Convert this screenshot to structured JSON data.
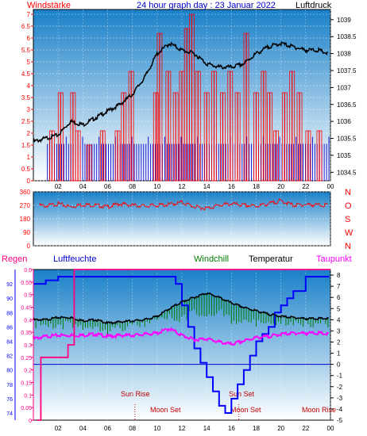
{
  "header": {
    "title": "24 hour graph day : 23 Januar 2022",
    "left_label": "Windstärke",
    "right_label": "Luftdruck"
  },
  "legend": {
    "regen": "Regen",
    "luftfeuchte": "Luftfeuchte",
    "windchill": "Windchill",
    "temperatur": "Temperatur",
    "taupunkt": "Taupunkt"
  },
  "colors": {
    "wind": "#ff0000",
    "gust": "#0000cc",
    "pressure": "#000000",
    "humidity": "#0000ff",
    "temperature": "#000000",
    "dewpoint": "#ff00ff",
    "windchill": "#008000",
    "rain": "#ff0080",
    "sky_top": "#1a80c8",
    "sky_bottom": "#ffffff"
  },
  "x_ticks": [
    "02",
    "04",
    "06",
    "08",
    "10",
    "12",
    "14",
    "16",
    "18",
    "20",
    "22",
    "00"
  ],
  "sun_events": [
    "Sun Rise",
    "Sun Set",
    "Moon Set",
    "Moon Set",
    "Moon Rise"
  ],
  "chart_data": [
    {
      "type": "line",
      "name": "wind-pressure",
      "ylabel_left": "Windstärke",
      "ylabel_right": "Luftdruck",
      "y_left_ticks": [
        "0",
        "0.5",
        "1",
        "1.5",
        "2",
        "2.5",
        "3",
        "3.5",
        "4",
        "4.5",
        "5",
        "5.5",
        "6",
        "6.5",
        "7"
      ],
      "y_right_ticks": [
        "1034.5",
        "1035",
        "1035.5",
        "1036",
        "1036.5",
        "1037",
        "1037.5",
        "1038",
        "1038.5",
        "1039"
      ],
      "y_left_range": [
        0,
        7
      ],
      "y_right_range": [
        1034.25,
        1039.3
      ],
      "x_range": [
        0,
        24
      ],
      "series": [
        {
          "name": "Luftdruck",
          "x": [
            0,
            1,
            2,
            3,
            4,
            5,
            6,
            7,
            8,
            9,
            10,
            11,
            12,
            13,
            14,
            15,
            16,
            17,
            18,
            19,
            20,
            21,
            22,
            23,
            23.8
          ],
          "values": [
            1035.4,
            1035.5,
            1035.6,
            1036.0,
            1035.9,
            1036.1,
            1036.3,
            1036.5,
            1036.8,
            1037.3,
            1038.0,
            1038.3,
            1038.1,
            1038.0,
            1037.7,
            1037.6,
            1037.6,
            1037.7,
            1038.0,
            1038.2,
            1038.3,
            1038.2,
            1038.1,
            1038.1,
            1038.0
          ]
        },
        {
          "name": "Windstärke",
          "x": [
            1.5,
            2.2,
            3.2,
            3.6,
            4.5,
            5.6,
            6.8,
            7.3,
            7.9,
            9.9,
            10.2,
            10.9,
            11.5,
            12.0,
            12.4,
            12.8,
            13.3,
            14.0,
            14.6,
            15.3,
            15.9,
            16.5,
            17.2,
            18.0,
            18.6,
            19.1,
            19.6,
            20.3,
            20.9,
            21.5,
            22.2,
            23.1
          ],
          "values": [
            2.1,
            3.7,
            3.7,
            2.1,
            1.5,
            2.1,
            2.1,
            3.7,
            4.6,
            3.7,
            6.2,
            4.6,
            3.7,
            4.6,
            6.4,
            7.0,
            4.6,
            3.7,
            4.6,
            3.7,
            4.6,
            3.7,
            6.2,
            3.7,
            4.6,
            3.7,
            2.1,
            3.7,
            4.6,
            3.7,
            2.1,
            2.1
          ]
        }
      ]
    },
    {
      "type": "line",
      "name": "wind-direction",
      "y_left_ticks": [
        "0",
        "90",
        "180",
        "270",
        "360"
      ],
      "y_right_ticks": [
        "N",
        "W",
        "S",
        "O",
        "N"
      ],
      "y_range": [
        0,
        360
      ],
      "x_range": [
        0,
        24
      ],
      "series": [
        {
          "name": "Windrichtung",
          "x": [
            0.5,
            1,
            2,
            3,
            4,
            5,
            6,
            7,
            8,
            9,
            10,
            11,
            12,
            13,
            14,
            15,
            16,
            17,
            18,
            19,
            20,
            21,
            22,
            23.8
          ],
          "values": [
            270,
            265,
            280,
            260,
            275,
            270,
            260,
            280,
            270,
            265,
            270,
            275,
            290,
            260,
            250,
            270,
            280,
            270,
            265,
            280,
            300,
            270,
            275,
            270
          ]
        }
      ]
    },
    {
      "type": "line",
      "name": "humidity-temperature",
      "y_left_rain_ticks": [
        "0",
        "0.05",
        "0.1",
        "0.15",
        "0.2",
        "0.25",
        "0.3",
        "0.35",
        "0.4",
        "0.45",
        "0.5",
        "0.55",
        "0.6"
      ],
      "y_left_humidity_ticks": [
        "74",
        "76",
        "78",
        "80",
        "82",
        "84",
        "86",
        "88",
        "90",
        "92"
      ],
      "y_right_ticks": [
        "-5",
        "-4",
        "-3",
        "-2",
        "-1",
        "0",
        "1",
        "2",
        "3",
        "4",
        "5",
        "6",
        "7",
        "8"
      ],
      "y_right_range": [
        -5,
        8.5
      ],
      "x_range": [
        0,
        24
      ],
      "series": [
        {
          "name": "Luftfeuchte",
          "x": [
            0,
            1,
            2,
            3,
            4,
            5,
            6,
            7,
            8,
            9,
            10,
            11,
            11.5,
            12,
            12.5,
            13,
            13.5,
            14,
            14.5,
            15,
            15.5,
            16,
            16.5,
            17,
            17.5,
            18,
            18.5,
            19,
            19.5,
            20,
            20.5,
            21,
            22,
            23,
            23.9
          ],
          "values": [
            92,
            92.5,
            93,
            93,
            93,
            93,
            93,
            93,
            93,
            93,
            93,
            93,
            92,
            89,
            86,
            83,
            81,
            79,
            77,
            75,
            74,
            76,
            78,
            80,
            82,
            84,
            85,
            86,
            88,
            89,
            90,
            91,
            93,
            93,
            93
          ]
        },
        {
          "name": "Temperatur",
          "x": [
            0,
            1,
            2,
            3,
            4,
            5,
            6,
            7,
            8,
            9,
            10,
            11,
            12,
            13,
            14,
            15,
            16,
            17,
            18,
            19,
            20,
            21,
            22,
            23,
            23.9
          ],
          "values": [
            4.0,
            4.0,
            4.2,
            4.2,
            3.9,
            4.0,
            3.7,
            3.8,
            3.9,
            4.0,
            4.3,
            5.0,
            5.6,
            6.0,
            6.4,
            6.0,
            5.5,
            5.1,
            4.8,
            4.5,
            4.3,
            4.2,
            4.1,
            4.1,
            4.1
          ]
        },
        {
          "name": "Taupunkt",
          "x": [
            0,
            1,
            2,
            3,
            4,
            5,
            6,
            7,
            8,
            9,
            10,
            11,
            12,
            13,
            14,
            15,
            16,
            17,
            18,
            19,
            20,
            21,
            22,
            23,
            23.9
          ],
          "values": [
            2.3,
            2.5,
            2.6,
            2.6,
            2.6,
            2.7,
            2.5,
            2.6,
            2.6,
            2.7,
            2.8,
            3.2,
            2.6,
            2.2,
            2.3,
            2.0,
            1.8,
            2.1,
            2.4,
            2.5,
            2.7,
            2.8,
            2.8,
            2.8,
            2.7
          ]
        },
        {
          "name": "Windchill",
          "x": [
            0,
            1,
            2,
            3,
            4,
            5,
            6,
            7,
            8,
            9,
            10,
            11,
            12,
            13,
            14,
            15,
            16,
            17,
            18,
            19,
            20,
            21,
            22,
            23,
            23.9
          ],
          "values": [
            4.0,
            3.9,
            3.6,
            4.1,
            3.7,
            3.9,
            3.5,
            3.7,
            3.9,
            4.0,
            4.2,
            4.6,
            4.4,
            5.0,
            4.8,
            5.3,
            4.2,
            4.5,
            4.0,
            4.4,
            4.2,
            4.2,
            4.1,
            4.1,
            4.1
          ]
        },
        {
          "name": "Regen",
          "x": [
            0.3,
            0.6,
            0.6,
            2.8,
            2.8,
            3.3,
            3.3,
            24
          ],
          "values": [
            0,
            0,
            0.25,
            0.25,
            0.3,
            0.3,
            0.6,
            0.6
          ]
        }
      ]
    }
  ]
}
